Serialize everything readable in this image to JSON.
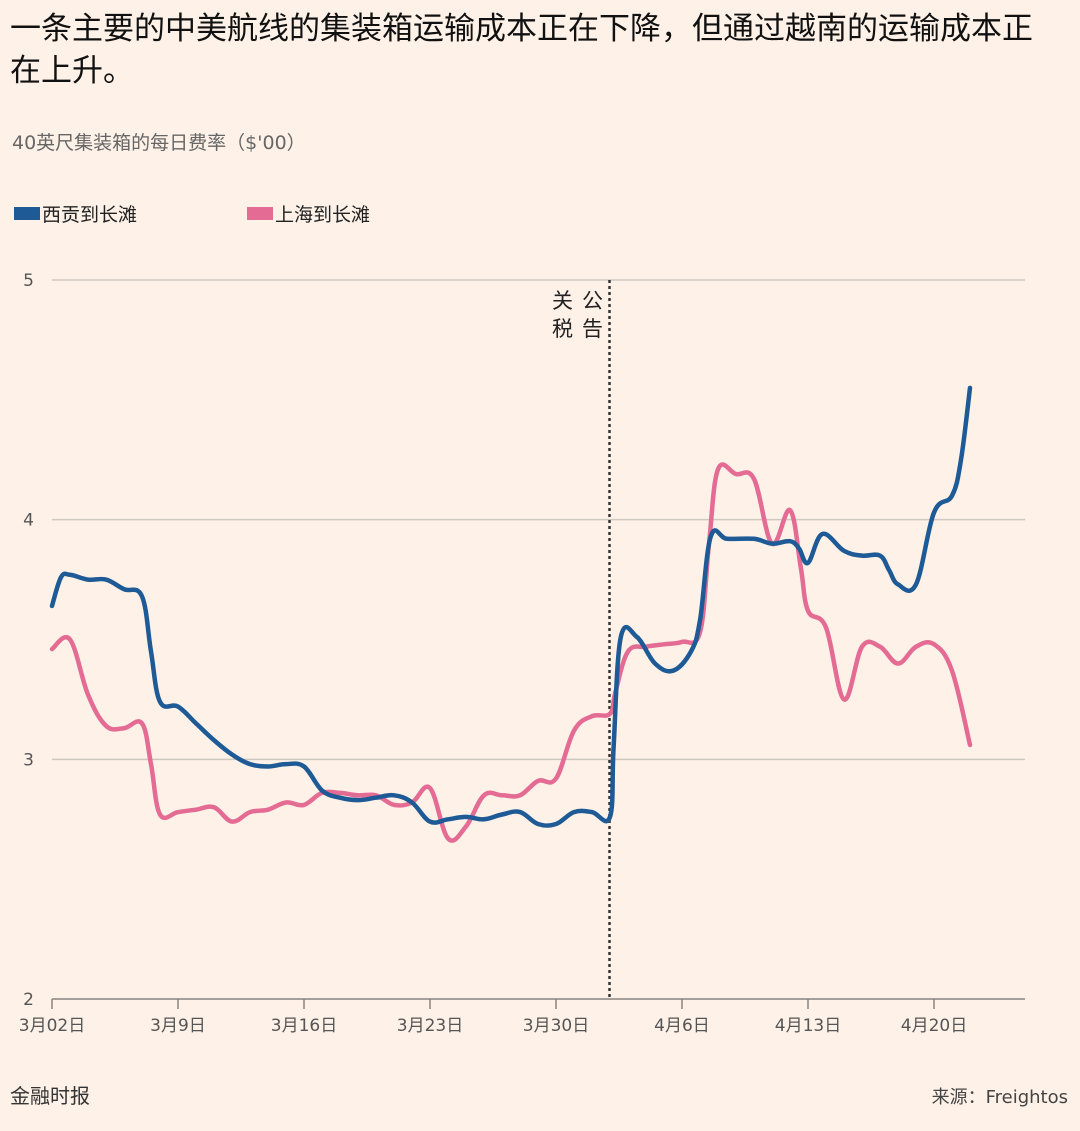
{
  "header": {
    "title": "一条主要的中美航线的集装箱运输成本正在下降，但通过越南的运输成本正在上升。",
    "subtitle": "40英尺集装箱的每日费率（$'00）"
  },
  "footer": {
    "publisher": "金融时报",
    "source": "来源：Freightos"
  },
  "colors": {
    "background": "#fdf1e8",
    "vietnam": "#1d5a96",
    "shanghai": "#e46b93",
    "grid": "#cfc8c1"
  },
  "chart_data": {
    "type": "line",
    "title": "一条主要的中美航线的集装箱运输成本正在下降，但通过越南的运输成本正在上升。",
    "ylabel": "40英尺集装箱的每日费率（$'00）",
    "ylim": [
      2,
      5
    ],
    "yticks": [
      "2",
      "3",
      "4",
      "5"
    ],
    "xlim": [
      "3月2日",
      "4月24日"
    ],
    "xticks": [
      {
        "label": "3月02日",
        "day": 0
      },
      {
        "label": "3月9日",
        "day": 7
      },
      {
        "label": "3月16日",
        "day": 14
      },
      {
        "label": "3月23日",
        "day": 21
      },
      {
        "label": "3月30日",
        "day": 28
      },
      {
        "label": "4月6日",
        "day": 35
      },
      {
        "label": "4月13日",
        "day": 42
      },
      {
        "label": "4月20日",
        "day": 49
      }
    ],
    "grid": true,
    "legend_position": "top-left",
    "annotation": {
      "label_a": "公告",
      "label_b": "关税",
      "day": 31
    },
    "series": [
      {
        "name": "西贡到长滩",
        "color": "#1d5a96",
        "points": [
          [
            0,
            3.64
          ],
          [
            0.5,
            3.76
          ],
          [
            1,
            3.77
          ],
          [
            2,
            3.75
          ],
          [
            3,
            3.75
          ],
          [
            4,
            3.71
          ],
          [
            5,
            3.68
          ],
          [
            5.5,
            3.45
          ],
          [
            6,
            3.24
          ],
          [
            7,
            3.22
          ],
          [
            8,
            3.15
          ],
          [
            9,
            3.08
          ],
          [
            10,
            3.02
          ],
          [
            11,
            2.98
          ],
          [
            12,
            2.97
          ],
          [
            13,
            2.98
          ],
          [
            14,
            2.97
          ],
          [
            15,
            2.87
          ],
          [
            16,
            2.84
          ],
          [
            17,
            2.83
          ],
          [
            18,
            2.84
          ],
          [
            19,
            2.85
          ],
          [
            20,
            2.82
          ],
          [
            21,
            2.74
          ],
          [
            22,
            2.75
          ],
          [
            23,
            2.76
          ],
          [
            24,
            2.75
          ],
          [
            25,
            2.77
          ],
          [
            26,
            2.78
          ],
          [
            27,
            2.73
          ],
          [
            28,
            2.73
          ],
          [
            29,
            2.78
          ],
          [
            30,
            2.78
          ],
          [
            31,
            2.76
          ],
          [
            31.2,
            3.05
          ],
          [
            31.6,
            3.51
          ],
          [
            32.5,
            3.51
          ],
          [
            33.5,
            3.4
          ],
          [
            34.5,
            3.37
          ],
          [
            35.5,
            3.45
          ],
          [
            36,
            3.58
          ],
          [
            36.6,
            3.93
          ],
          [
            37.5,
            3.92
          ],
          [
            39,
            3.92
          ],
          [
            40,
            3.9
          ],
          [
            41,
            3.91
          ],
          [
            41.5,
            3.88
          ],
          [
            42,
            3.82
          ],
          [
            42.8,
            3.94
          ],
          [
            44,
            3.87
          ],
          [
            45,
            3.85
          ],
          [
            46,
            3.85
          ],
          [
            46.5,
            3.79
          ],
          [
            47,
            3.73
          ],
          [
            48,
            3.73
          ],
          [
            49,
            4.03
          ],
          [
            50,
            4.1
          ],
          [
            50.5,
            4.25
          ],
          [
            51,
            4.55
          ]
        ]
      },
      {
        "name": "上海到长滩",
        "color": "#e46b93",
        "points": [
          [
            0,
            3.46
          ],
          [
            1,
            3.5
          ],
          [
            2,
            3.27
          ],
          [
            3,
            3.14
          ],
          [
            4,
            3.13
          ],
          [
            5,
            3.15
          ],
          [
            5.5,
            2.98
          ],
          [
            6,
            2.77
          ],
          [
            7,
            2.78
          ],
          [
            8,
            2.79
          ],
          [
            9,
            2.8
          ],
          [
            10,
            2.74
          ],
          [
            11,
            2.78
          ],
          [
            12,
            2.79
          ],
          [
            13,
            2.82
          ],
          [
            14,
            2.81
          ],
          [
            15,
            2.86
          ],
          [
            16,
            2.86
          ],
          [
            17,
            2.85
          ],
          [
            18,
            2.85
          ],
          [
            19,
            2.81
          ],
          [
            20,
            2.82
          ],
          [
            21,
            2.88
          ],
          [
            22,
            2.67
          ],
          [
            23,
            2.72
          ],
          [
            24,
            2.85
          ],
          [
            25,
            2.85
          ],
          [
            26,
            2.85
          ],
          [
            27,
            2.91
          ],
          [
            28,
            2.92
          ],
          [
            29,
            3.12
          ],
          [
            30,
            3.18
          ],
          [
            31,
            3.19
          ],
          [
            31.3,
            3.28
          ],
          [
            32,
            3.45
          ],
          [
            33,
            3.47
          ],
          [
            34,
            3.48
          ],
          [
            35,
            3.49
          ],
          [
            36,
            3.53
          ],
          [
            36.5,
            3.9
          ],
          [
            37,
            4.21
          ],
          [
            38,
            4.19
          ],
          [
            39,
            4.17
          ],
          [
            40,
            3.9
          ],
          [
            41,
            4.04
          ],
          [
            41.6,
            3.8
          ],
          [
            42,
            3.62
          ],
          [
            43,
            3.55
          ],
          [
            44,
            3.25
          ],
          [
            45,
            3.47
          ],
          [
            46,
            3.47
          ],
          [
            47,
            3.4
          ],
          [
            48,
            3.47
          ],
          [
            49,
            3.48
          ],
          [
            50,
            3.37
          ],
          [
            51,
            3.06
          ]
        ]
      }
    ]
  }
}
